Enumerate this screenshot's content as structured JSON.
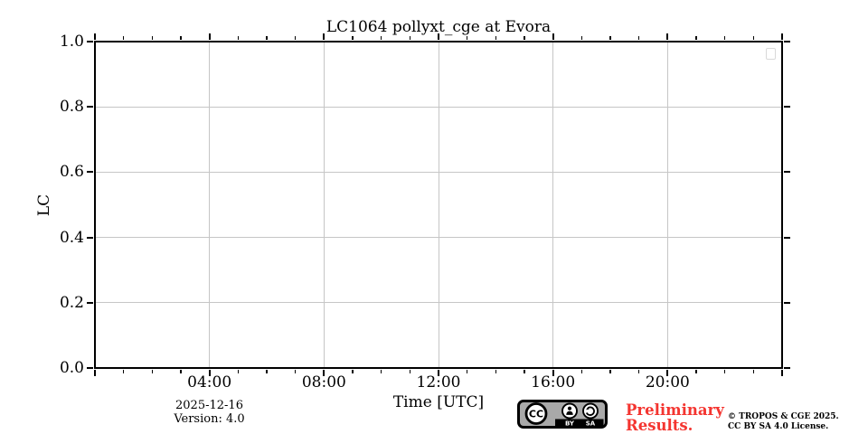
{
  "page": {
    "background": "#ffffff"
  },
  "chart_data": {
    "type": "line",
    "title": "LC1064 pollyxt_cge at Evora",
    "xlabel": "Time [UTC]",
    "ylabel": "LC",
    "xlim_hours": [
      0,
      24
    ],
    "ylim": [
      0.0,
      1.0
    ],
    "x_major_ticks": [
      {
        "hour": 0,
        "label": ""
      },
      {
        "hour": 4,
        "label": "04:00"
      },
      {
        "hour": 8,
        "label": "08:00"
      },
      {
        "hour": 12,
        "label": "12:00"
      },
      {
        "hour": 16,
        "label": "16:00"
      },
      {
        "hour": 20,
        "label": "20:00"
      },
      {
        "hour": 24,
        "label": ""
      }
    ],
    "x_minor_tick_step_hours": 1,
    "y_major_ticks": [
      {
        "value": 0.0,
        "label": "0.0"
      },
      {
        "value": 0.2,
        "label": "0.2"
      },
      {
        "value": 0.4,
        "label": "0.4"
      },
      {
        "value": 0.6,
        "label": "0.6"
      },
      {
        "value": 0.8,
        "label": "0.8"
      },
      {
        "value": 1.0,
        "label": "1.0"
      }
    ],
    "grid": true,
    "grid_color": "#c6c6c6",
    "series": [],
    "legend": {
      "visible": true,
      "entries": []
    }
  },
  "footer": {
    "date": "2025-12-16",
    "version": "Version: 4.0",
    "license_badge": {
      "cc": "CC",
      "by": "BY",
      "sa": "SA"
    },
    "preliminary": {
      "line1": "Preliminary",
      "line2": "Results.",
      "color": "#f43530"
    },
    "copyright": {
      "line1": "© TROPOS & CGE 2025.",
      "line2": "CC BY SA 4.0 License."
    }
  }
}
